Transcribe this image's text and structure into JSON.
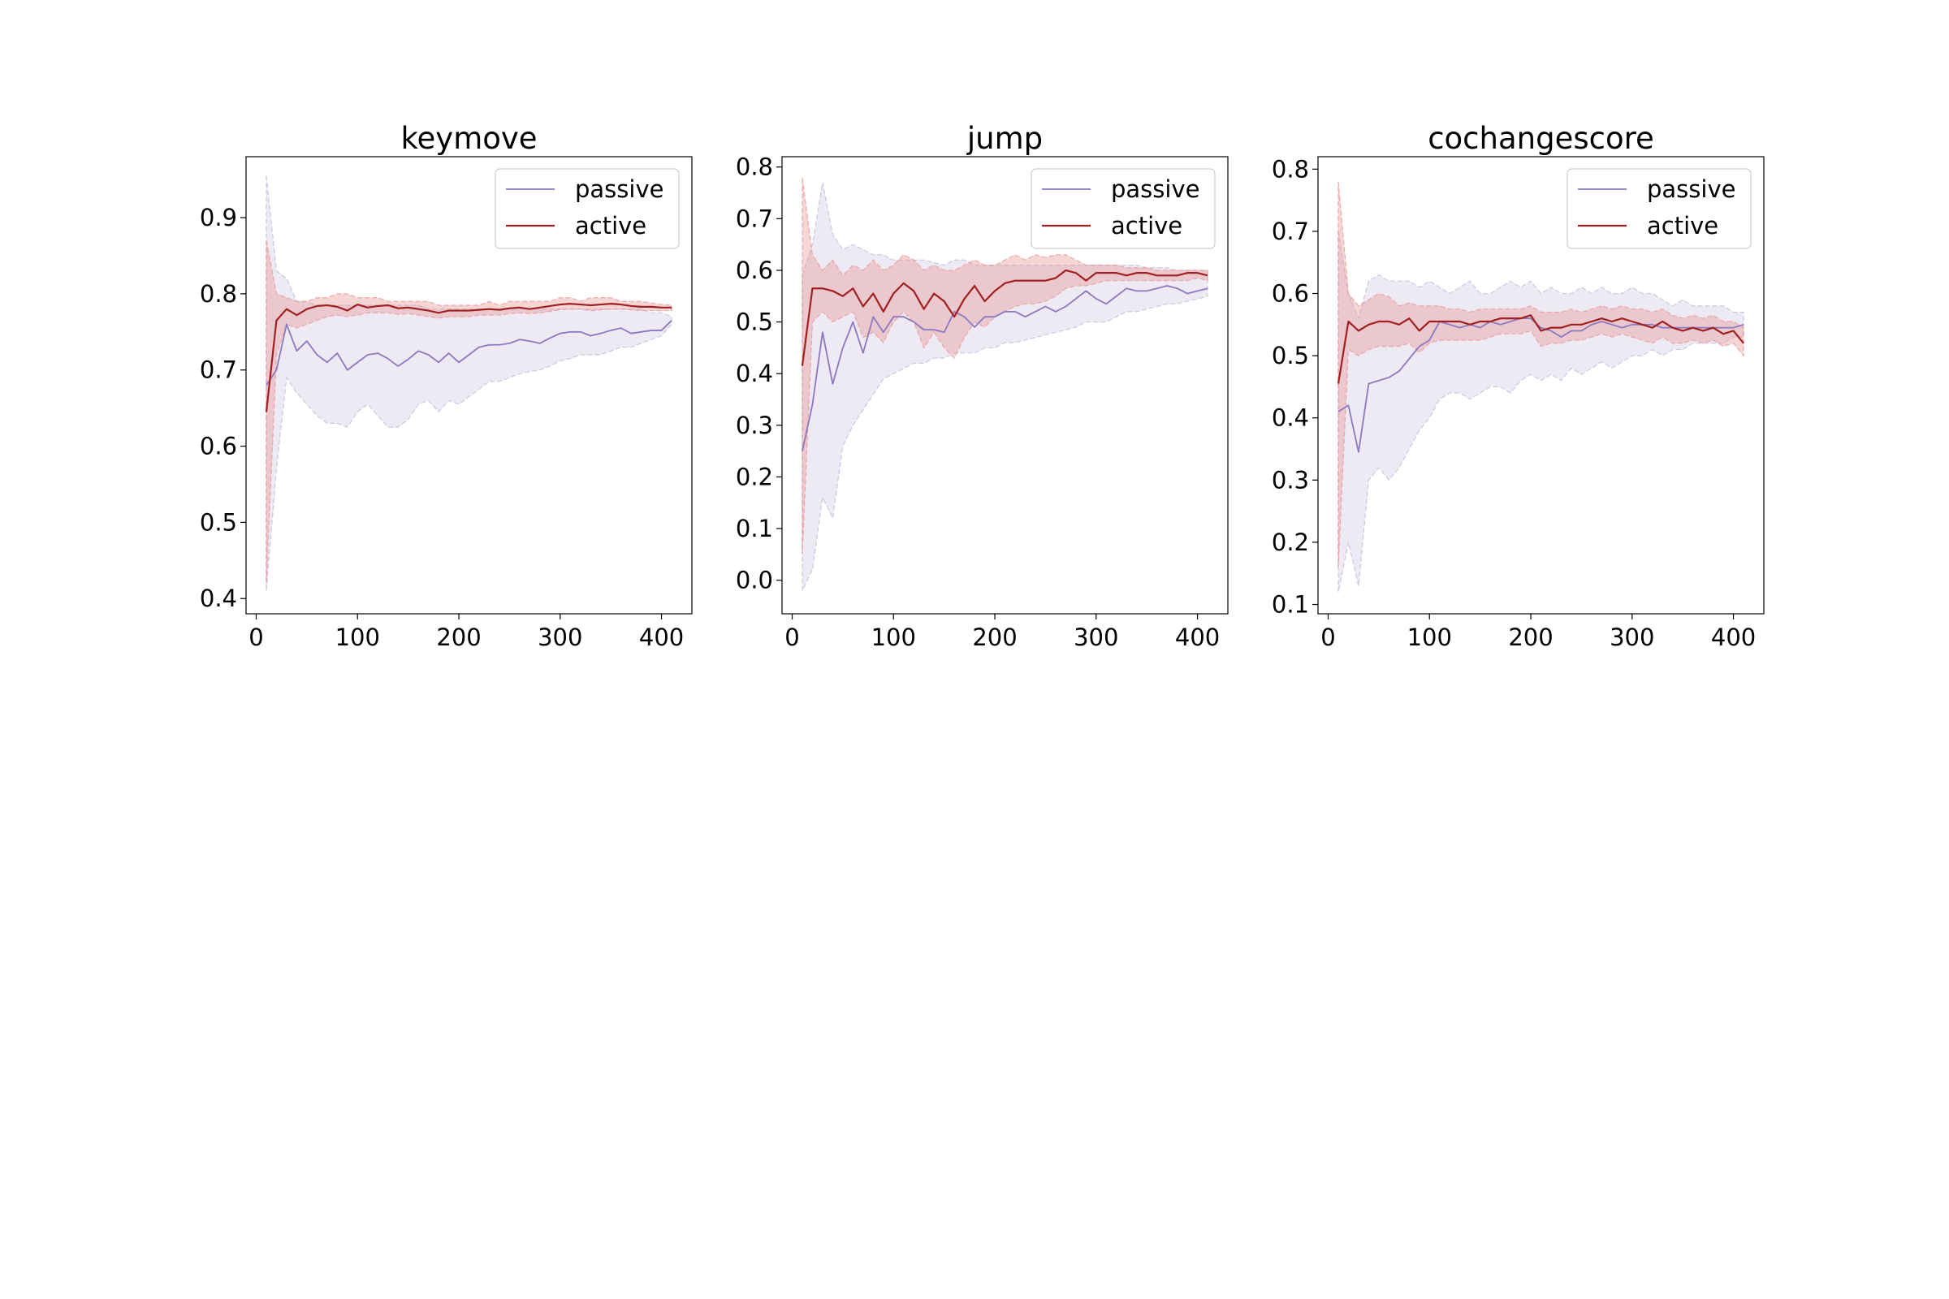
{
  "colors": {
    "passive": "#8c78c0",
    "active": "#a02020",
    "passive_band": "#bdb3d6",
    "active_band": "#e89090"
  },
  "chart_data": [
    {
      "type": "line",
      "title": "keymove",
      "xlabel": "",
      "ylabel": "",
      "xlim": [
        -10,
        430
      ],
      "ylim": [
        0.38,
        0.98
      ],
      "xticks": [
        0,
        100,
        200,
        300,
        400
      ],
      "yticks": [
        0.4,
        0.5,
        0.6,
        0.7,
        0.8,
        0.9
      ],
      "ytick_labels": [
        "0.4",
        "0.5",
        "0.6",
        "0.7",
        "0.8",
        "0.9"
      ],
      "legend": {
        "position": "top-right",
        "entries": [
          "passive",
          "active"
        ]
      },
      "grid": false,
      "x": [
        10,
        20,
        30,
        40,
        50,
        60,
        70,
        80,
        90,
        100,
        110,
        120,
        130,
        140,
        150,
        160,
        170,
        180,
        190,
        200,
        210,
        220,
        230,
        240,
        250,
        260,
        270,
        280,
        290,
        300,
        310,
        320,
        330,
        340,
        350,
        360,
        370,
        380,
        390,
        400,
        410
      ],
      "series": [
        {
          "name": "passive",
          "values": [
            0.68,
            0.7,
            0.76,
            0.725,
            0.738,
            0.72,
            0.71,
            0.722,
            0.7,
            0.71,
            0.72,
            0.722,
            0.715,
            0.705,
            0.714,
            0.725,
            0.72,
            0.71,
            0.722,
            0.71,
            0.72,
            0.73,
            0.733,
            0.733,
            0.735,
            0.74,
            0.738,
            0.735,
            0.742,
            0.748,
            0.75,
            0.75,
            0.745,
            0.748,
            0.752,
            0.755,
            0.748,
            0.75,
            0.752,
            0.752,
            0.765
          ],
          "band_upper": [
            0.955,
            0.83,
            0.82,
            0.79,
            0.79,
            0.785,
            0.785,
            0.785,
            0.785,
            0.785,
            0.785,
            0.785,
            0.785,
            0.785,
            0.785,
            0.785,
            0.78,
            0.78,
            0.78,
            0.78,
            0.78,
            0.78,
            0.78,
            0.78,
            0.78,
            0.78,
            0.78,
            0.78,
            0.78,
            0.78,
            0.78,
            0.78,
            0.78,
            0.78,
            0.78,
            0.78,
            0.78,
            0.78,
            0.775,
            0.775,
            0.77
          ],
          "band_lower": [
            0.41,
            0.57,
            0.69,
            0.67,
            0.655,
            0.64,
            0.63,
            0.63,
            0.625,
            0.645,
            0.655,
            0.64,
            0.625,
            0.625,
            0.635,
            0.655,
            0.66,
            0.645,
            0.66,
            0.655,
            0.665,
            0.675,
            0.685,
            0.685,
            0.69,
            0.695,
            0.698,
            0.7,
            0.705,
            0.712,
            0.715,
            0.72,
            0.72,
            0.72,
            0.725,
            0.73,
            0.73,
            0.735,
            0.74,
            0.745,
            0.76
          ]
        },
        {
          "name": "active",
          "values": [
            0.645,
            0.765,
            0.78,
            0.772,
            0.78,
            0.784,
            0.785,
            0.783,
            0.778,
            0.786,
            0.782,
            0.784,
            0.785,
            0.781,
            0.782,
            0.78,
            0.778,
            0.775,
            0.778,
            0.778,
            0.778,
            0.779,
            0.78,
            0.779,
            0.781,
            0.782,
            0.78,
            0.782,
            0.784,
            0.786,
            0.787,
            0.786,
            0.785,
            0.786,
            0.787,
            0.786,
            0.784,
            0.783,
            0.783,
            0.782,
            0.782
          ],
          "band_upper": [
            0.87,
            0.8,
            0.795,
            0.79,
            0.79,
            0.795,
            0.795,
            0.8,
            0.8,
            0.795,
            0.795,
            0.795,
            0.79,
            0.79,
            0.79,
            0.79,
            0.79,
            0.785,
            0.785,
            0.785,
            0.785,
            0.785,
            0.79,
            0.785,
            0.79,
            0.79,
            0.79,
            0.79,
            0.79,
            0.795,
            0.795,
            0.79,
            0.795,
            0.795,
            0.795,
            0.79,
            0.79,
            0.79,
            0.788,
            0.786,
            0.785
          ],
          "band_lower": [
            0.42,
            0.72,
            0.76,
            0.755,
            0.76,
            0.765,
            0.77,
            0.772,
            0.77,
            0.772,
            0.775,
            0.775,
            0.775,
            0.773,
            0.774,
            0.772,
            0.77,
            0.768,
            0.77,
            0.77,
            0.77,
            0.772,
            0.772,
            0.772,
            0.774,
            0.775,
            0.774,
            0.775,
            0.777,
            0.779,
            0.78,
            0.78,
            0.778,
            0.779,
            0.78,
            0.78,
            0.779,
            0.778,
            0.778,
            0.778,
            0.778
          ]
        }
      ]
    },
    {
      "type": "line",
      "title": "jump",
      "xlabel": "",
      "ylabel": "",
      "xlim": [
        -10,
        430
      ],
      "ylim": [
        -0.065,
        0.82
      ],
      "xticks": [
        0,
        100,
        200,
        300,
        400
      ],
      "yticks": [
        0.0,
        0.1,
        0.2,
        0.3,
        0.4,
        0.5,
        0.6,
        0.7,
        0.8
      ],
      "ytick_labels": [
        "0.0",
        "0.1",
        "0.2",
        "0.3",
        "0.4",
        "0.5",
        "0.6",
        "0.7",
        "0.8"
      ],
      "legend": {
        "position": "top-right",
        "entries": [
          "passive",
          "active"
        ]
      },
      "grid": false,
      "x": [
        10,
        20,
        30,
        40,
        50,
        60,
        70,
        80,
        90,
        100,
        110,
        120,
        130,
        140,
        150,
        160,
        170,
        180,
        190,
        200,
        210,
        220,
        230,
        240,
        250,
        260,
        270,
        280,
        290,
        300,
        310,
        320,
        330,
        340,
        350,
        360,
        370,
        380,
        390,
        400,
        410
      ],
      "series": [
        {
          "name": "passive",
          "values": [
            0.25,
            0.34,
            0.48,
            0.38,
            0.45,
            0.5,
            0.44,
            0.51,
            0.48,
            0.51,
            0.51,
            0.5,
            0.485,
            0.485,
            0.48,
            0.52,
            0.51,
            0.49,
            0.51,
            0.51,
            0.52,
            0.52,
            0.51,
            0.52,
            0.53,
            0.52,
            0.53,
            0.545,
            0.56,
            0.545,
            0.535,
            0.55,
            0.565,
            0.56,
            0.56,
            0.565,
            0.57,
            0.565,
            0.555,
            0.56,
            0.565
          ],
          "band_upper": [
            0.59,
            0.65,
            0.77,
            0.67,
            0.64,
            0.65,
            0.64,
            0.63,
            0.63,
            0.62,
            0.62,
            0.62,
            0.62,
            0.615,
            0.61,
            0.62,
            0.62,
            0.61,
            0.61,
            0.61,
            0.61,
            0.61,
            0.61,
            0.61,
            0.61,
            0.61,
            0.61,
            0.61,
            0.61,
            0.61,
            0.61,
            0.61,
            0.61,
            0.61,
            0.605,
            0.605,
            0.605,
            0.6,
            0.6,
            0.6,
            0.6
          ],
          "band_lower": [
            -0.02,
            0.02,
            0.16,
            0.12,
            0.26,
            0.3,
            0.33,
            0.36,
            0.39,
            0.4,
            0.41,
            0.42,
            0.42,
            0.43,
            0.43,
            0.44,
            0.44,
            0.44,
            0.45,
            0.45,
            0.46,
            0.46,
            0.465,
            0.47,
            0.475,
            0.48,
            0.485,
            0.49,
            0.5,
            0.5,
            0.5,
            0.51,
            0.52,
            0.52,
            0.525,
            0.53,
            0.535,
            0.535,
            0.54,
            0.545,
            0.55
          ]
        },
        {
          "name": "active",
          "values": [
            0.415,
            0.565,
            0.565,
            0.56,
            0.55,
            0.565,
            0.53,
            0.555,
            0.52,
            0.555,
            0.575,
            0.56,
            0.525,
            0.555,
            0.54,
            0.51,
            0.545,
            0.57,
            0.54,
            0.56,
            0.575,
            0.58,
            0.58,
            0.58,
            0.58,
            0.585,
            0.6,
            0.595,
            0.58,
            0.595,
            0.595,
            0.595,
            0.59,
            0.595,
            0.595,
            0.59,
            0.59,
            0.59,
            0.595,
            0.595,
            0.59
          ],
          "band_upper": [
            0.78,
            0.63,
            0.6,
            0.62,
            0.59,
            0.61,
            0.6,
            0.62,
            0.6,
            0.61,
            0.63,
            0.62,
            0.6,
            0.61,
            0.6,
            0.6,
            0.61,
            0.62,
            0.61,
            0.61,
            0.62,
            0.63,
            0.62,
            0.63,
            0.625,
            0.63,
            0.63,
            0.62,
            0.61,
            0.61,
            0.61,
            0.61,
            0.605,
            0.605,
            0.605,
            0.6,
            0.6,
            0.6,
            0.6,
            0.6,
            0.6
          ],
          "band_lower": [
            0.05,
            0.5,
            0.52,
            0.5,
            0.51,
            0.52,
            0.47,
            0.48,
            0.46,
            0.5,
            0.52,
            0.5,
            0.45,
            0.48,
            0.45,
            0.43,
            0.47,
            0.5,
            0.49,
            0.51,
            0.52,
            0.53,
            0.535,
            0.535,
            0.54,
            0.55,
            0.565,
            0.57,
            0.57,
            0.575,
            0.58,
            0.58,
            0.58,
            0.58,
            0.58,
            0.58,
            0.58,
            0.58,
            0.58,
            0.585,
            0.58
          ]
        }
      ]
    },
    {
      "type": "line",
      "title": "cochangescore",
      "xlabel": "",
      "ylabel": "",
      "xlim": [
        -10,
        430
      ],
      "ylim": [
        0.085,
        0.82
      ],
      "xticks": [
        0,
        100,
        200,
        300,
        400
      ],
      "yticks": [
        0.1,
        0.2,
        0.3,
        0.4,
        0.5,
        0.6,
        0.7,
        0.8
      ],
      "ytick_labels": [
        "0.1",
        "0.2",
        "0.3",
        "0.4",
        "0.5",
        "0.6",
        "0.7",
        "0.8"
      ],
      "legend": {
        "position": "top-right",
        "entries": [
          "passive",
          "active"
        ]
      },
      "grid": false,
      "x": [
        10,
        20,
        30,
        40,
        50,
        60,
        70,
        80,
        90,
        100,
        110,
        120,
        130,
        140,
        150,
        160,
        170,
        180,
        190,
        200,
        210,
        220,
        230,
        240,
        250,
        260,
        270,
        280,
        290,
        300,
        310,
        320,
        330,
        340,
        350,
        360,
        370,
        380,
        390,
        400,
        410
      ],
      "series": [
        {
          "name": "passive",
          "values": [
            0.41,
            0.42,
            0.345,
            0.455,
            0.46,
            0.465,
            0.475,
            0.495,
            0.515,
            0.525,
            0.555,
            0.55,
            0.545,
            0.55,
            0.545,
            0.555,
            0.55,
            0.555,
            0.56,
            0.56,
            0.545,
            0.54,
            0.53,
            0.54,
            0.54,
            0.55,
            0.555,
            0.55,
            0.545,
            0.55,
            0.55,
            0.55,
            0.545,
            0.545,
            0.545,
            0.545,
            0.545,
            0.545,
            0.545,
            0.545,
            0.55
          ],
          "band_upper": [
            0.7,
            0.6,
            0.56,
            0.62,
            0.63,
            0.62,
            0.62,
            0.62,
            0.61,
            0.62,
            0.61,
            0.6,
            0.61,
            0.62,
            0.6,
            0.6,
            0.61,
            0.62,
            0.61,
            0.62,
            0.6,
            0.61,
            0.6,
            0.6,
            0.61,
            0.6,
            0.61,
            0.6,
            0.6,
            0.61,
            0.6,
            0.6,
            0.59,
            0.58,
            0.59,
            0.58,
            0.58,
            0.58,
            0.58,
            0.57,
            0.57
          ],
          "band_lower": [
            0.12,
            0.2,
            0.13,
            0.3,
            0.32,
            0.3,
            0.32,
            0.35,
            0.38,
            0.4,
            0.43,
            0.44,
            0.44,
            0.43,
            0.44,
            0.45,
            0.45,
            0.44,
            0.46,
            0.47,
            0.46,
            0.47,
            0.46,
            0.48,
            0.47,
            0.48,
            0.49,
            0.48,
            0.49,
            0.5,
            0.5,
            0.51,
            0.5,
            0.51,
            0.51,
            0.52,
            0.52,
            0.52,
            0.52,
            0.53,
            0.53
          ]
        },
        {
          "name": "active",
          "values": [
            0.455,
            0.555,
            0.54,
            0.55,
            0.555,
            0.555,
            0.55,
            0.56,
            0.54,
            0.555,
            0.555,
            0.555,
            0.555,
            0.55,
            0.555,
            0.555,
            0.56,
            0.56,
            0.56,
            0.565,
            0.54,
            0.545,
            0.545,
            0.55,
            0.55,
            0.555,
            0.56,
            0.555,
            0.56,
            0.555,
            0.55,
            0.545,
            0.555,
            0.545,
            0.54,
            0.545,
            0.54,
            0.545,
            0.535,
            0.54,
            0.52
          ],
          "band_upper": [
            0.78,
            0.6,
            0.58,
            0.59,
            0.6,
            0.595,
            0.58,
            0.585,
            0.58,
            0.58,
            0.58,
            0.575,
            0.575,
            0.57,
            0.575,
            0.575,
            0.575,
            0.575,
            0.575,
            0.58,
            0.57,
            0.57,
            0.57,
            0.575,
            0.57,
            0.575,
            0.58,
            0.575,
            0.58,
            0.575,
            0.575,
            0.57,
            0.575,
            0.565,
            0.56,
            0.565,
            0.56,
            0.565,
            0.555,
            0.555,
            0.545
          ],
          "band_lower": [
            0.16,
            0.51,
            0.5,
            0.51,
            0.515,
            0.515,
            0.515,
            0.52,
            0.505,
            0.52,
            0.525,
            0.525,
            0.525,
            0.525,
            0.525,
            0.53,
            0.535,
            0.535,
            0.535,
            0.54,
            0.515,
            0.52,
            0.52,
            0.525,
            0.525,
            0.53,
            0.535,
            0.53,
            0.535,
            0.53,
            0.525,
            0.52,
            0.53,
            0.52,
            0.52,
            0.525,
            0.52,
            0.525,
            0.515,
            0.52,
            0.5
          ]
        }
      ]
    }
  ]
}
